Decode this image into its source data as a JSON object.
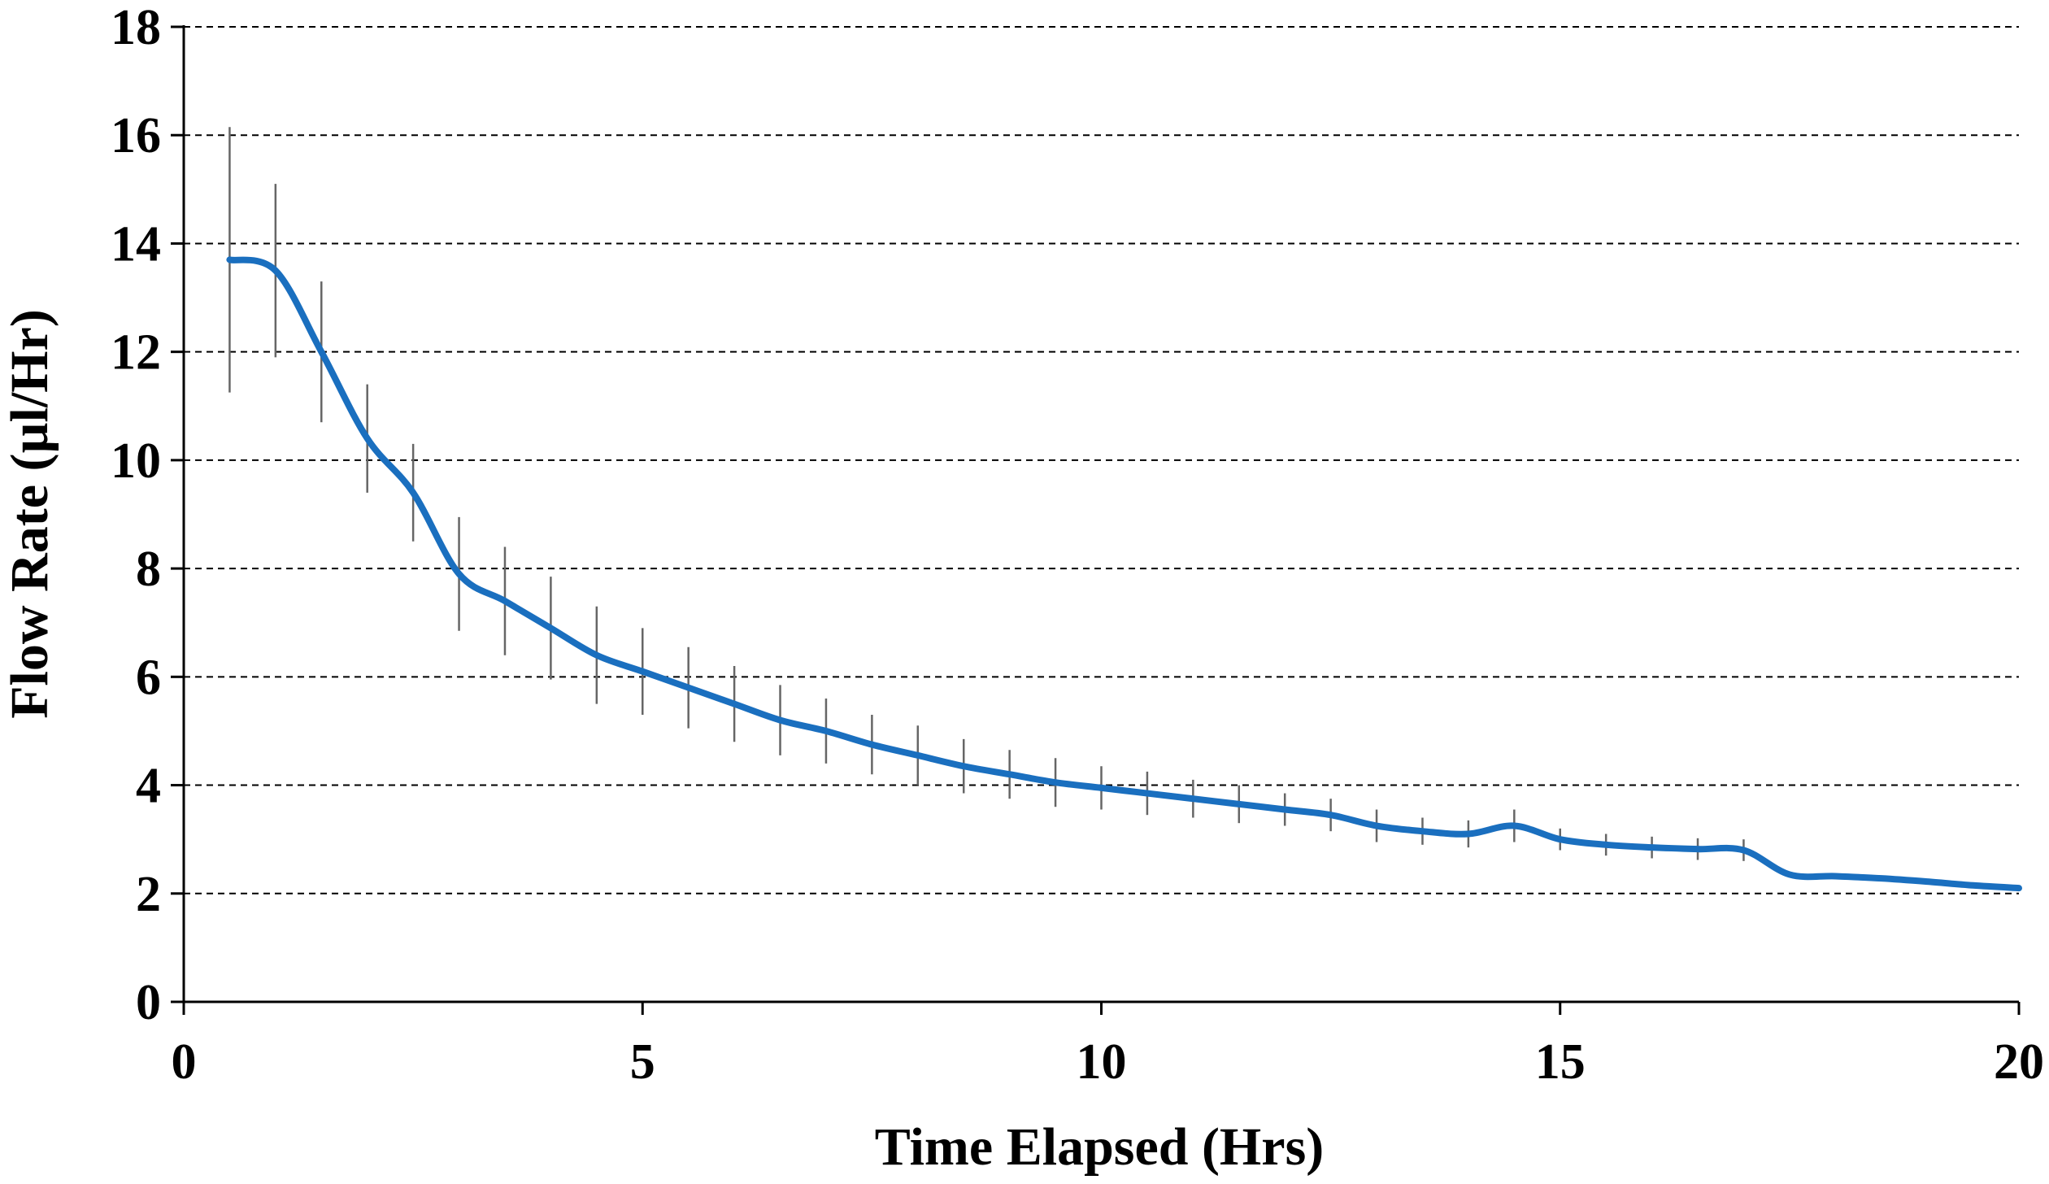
{
  "chart_data": {
    "type": "line",
    "title": "",
    "xlabel": "Time Elapsed (Hrs)",
    "ylabel": "Flow Rate (µl/Hr)",
    "xlim": [
      0,
      20
    ],
    "ylim": [
      0,
      18
    ],
    "xticks": [
      0,
      5,
      10,
      15,
      20
    ],
    "yticks": [
      0,
      2,
      4,
      6,
      8,
      10,
      12,
      14,
      16,
      18
    ],
    "grid": "horizontal dashed",
    "legend": "none",
    "line_color": "#1a6fbf",
    "errorbar_color": "#666666",
    "series": [
      {
        "x": [
          0.5,
          1.0,
          1.5,
          2.0,
          2.5,
          3.0,
          3.5,
          4.0,
          4.5,
          5.0,
          5.5,
          6.0,
          6.5,
          7.0,
          7.5,
          8.0,
          8.5,
          9.0,
          9.5,
          10.0,
          10.5,
          11.0,
          11.5,
          12.0,
          12.5,
          13.0,
          13.5,
          14.0,
          14.5,
          15.0,
          15.5,
          16.0,
          16.5,
          17.0,
          17.5,
          18.0,
          18.5,
          19.0,
          19.5,
          20.0
        ],
        "y": [
          13.7,
          13.5,
          12.0,
          10.4,
          9.4,
          7.9,
          7.4,
          6.9,
          6.4,
          6.1,
          5.8,
          5.5,
          5.2,
          5.0,
          4.75,
          4.55,
          4.35,
          4.2,
          4.05,
          3.95,
          3.85,
          3.75,
          3.65,
          3.55,
          3.45,
          3.25,
          3.15,
          3.1,
          3.25,
          3.0,
          2.9,
          2.85,
          2.82,
          2.8,
          2.35,
          2.32,
          2.28,
          2.22,
          2.15,
          2.1
        ],
        "error": [
          2.45,
          1.6,
          1.3,
          1.0,
          0.9,
          1.05,
          1.0,
          0.95,
          0.9,
          0.8,
          0.75,
          0.7,
          0.65,
          0.6,
          0.55,
          0.55,
          0.5,
          0.45,
          0.45,
          0.4,
          0.4,
          0.35,
          0.35,
          0.3,
          0.3,
          0.3,
          0.25,
          0.25,
          0.3,
          0.2,
          0.2,
          0.2,
          0.2,
          0.2,
          0.0,
          0.0,
          0.0,
          0.0,
          0.0,
          0.0
        ]
      }
    ]
  }
}
